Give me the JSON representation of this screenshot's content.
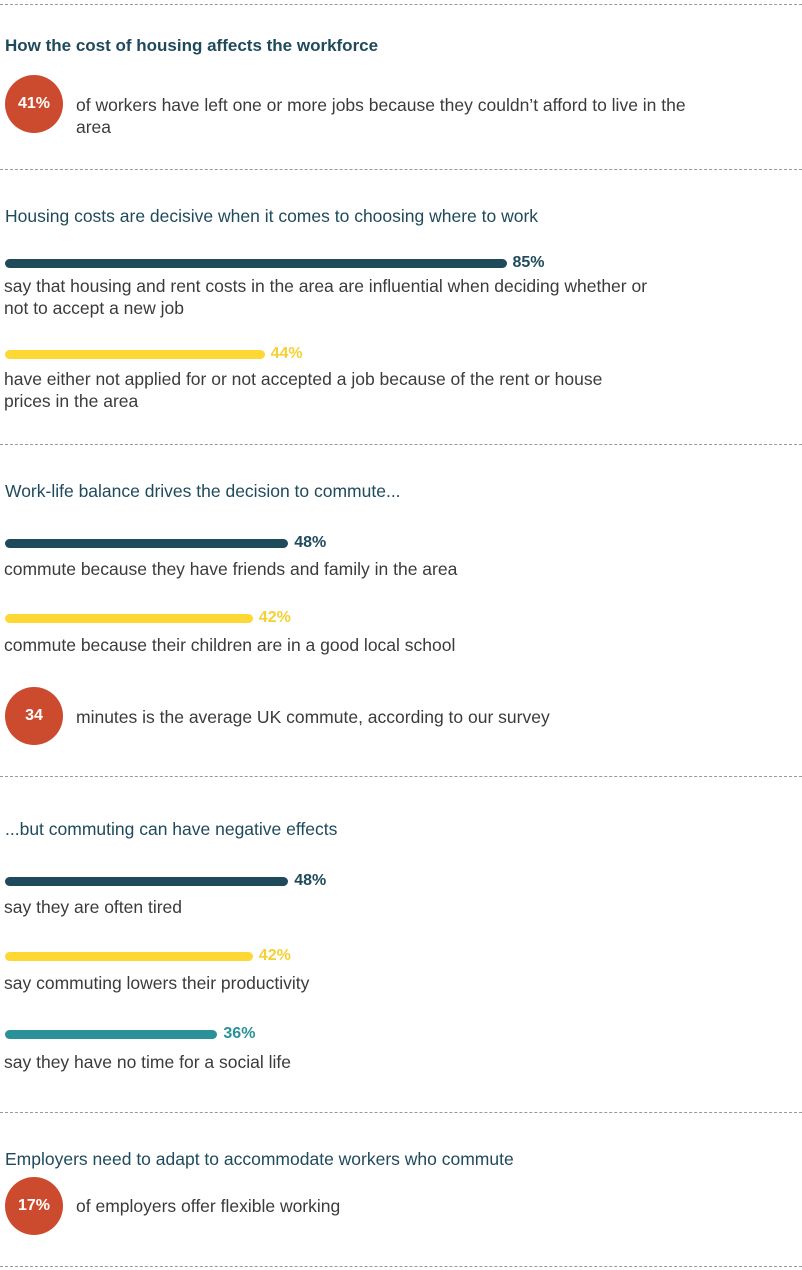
{
  "colors": {
    "heading": "#1f4a5c",
    "dark_bar": "#1f4a5c",
    "yellow_bar": "#fdd835",
    "yellow_text": "#f5d033",
    "teal_bar": "#2a9199",
    "teal_text": "#2a9199",
    "circle": "#cc4b2e"
  },
  "section1": {
    "title": "How the cost of housing affects the workforce",
    "stat_value": "41%",
    "stat_text": "of workers have left one or more jobs because they couldn’t afford to live in the area"
  },
  "section2": {
    "title": "Housing costs are decisive when it comes to choosing where to work",
    "bars": [
      {
        "label": "85%",
        "text": "say that housing and rent costs in the area are influential when deciding whether or not to accept a new job"
      },
      {
        "label": "44%",
        "text": "have either not applied for or not accepted a job because of the rent or house prices in the area"
      }
    ]
  },
  "section3": {
    "title": "Work-life balance drives the decision to commute...",
    "bars": [
      {
        "label": "48%",
        "text": "commute because they have friends and family in the area"
      },
      {
        "label": "42%",
        "text": "commute because their children are in a good local school"
      }
    ],
    "stat_value": "34",
    "stat_text": "minutes is the average UK commute, according to our survey"
  },
  "section4": {
    "title": "...but commuting can have negative effects",
    "bars": [
      {
        "label": "48%",
        "text": "say they are often tired"
      },
      {
        "label": "42%",
        "text": "say commuting lowers their productivity"
      },
      {
        "label": "36%",
        "text": "say they have no time for a social life"
      }
    ]
  },
  "section5": {
    "title": "Employers need to adapt to accommodate workers who commute",
    "stat_value": "17%",
    "stat_text": "of employers offer flexible working"
  },
  "chart_data": {
    "type": "bar",
    "orientation": "horizontal",
    "series": [
      {
        "name": "Housing costs are decisive when it comes to choosing where to work",
        "categories": [
          "say that housing and rent costs in the area are influential when deciding whether or not to accept a new job",
          "have either not applied for or not accepted a job because of the rent or house prices in the area"
        ],
        "values": [
          85,
          44
        ]
      },
      {
        "name": "Work-life balance drives the decision to commute...",
        "categories": [
          "commute because they have friends and family in the area",
          "commute because their children are in a good local school"
        ],
        "values": [
          48,
          42
        ]
      },
      {
        "name": "...but commuting can have negative effects",
        "categories": [
          "say they are often tired",
          "say commuting lowers their productivity",
          "say they have no time for a social life"
        ],
        "values": [
          48,
          42,
          36
        ]
      }
    ],
    "unit": "%",
    "xlim": [
      0,
      100
    ],
    "grid": false
  }
}
